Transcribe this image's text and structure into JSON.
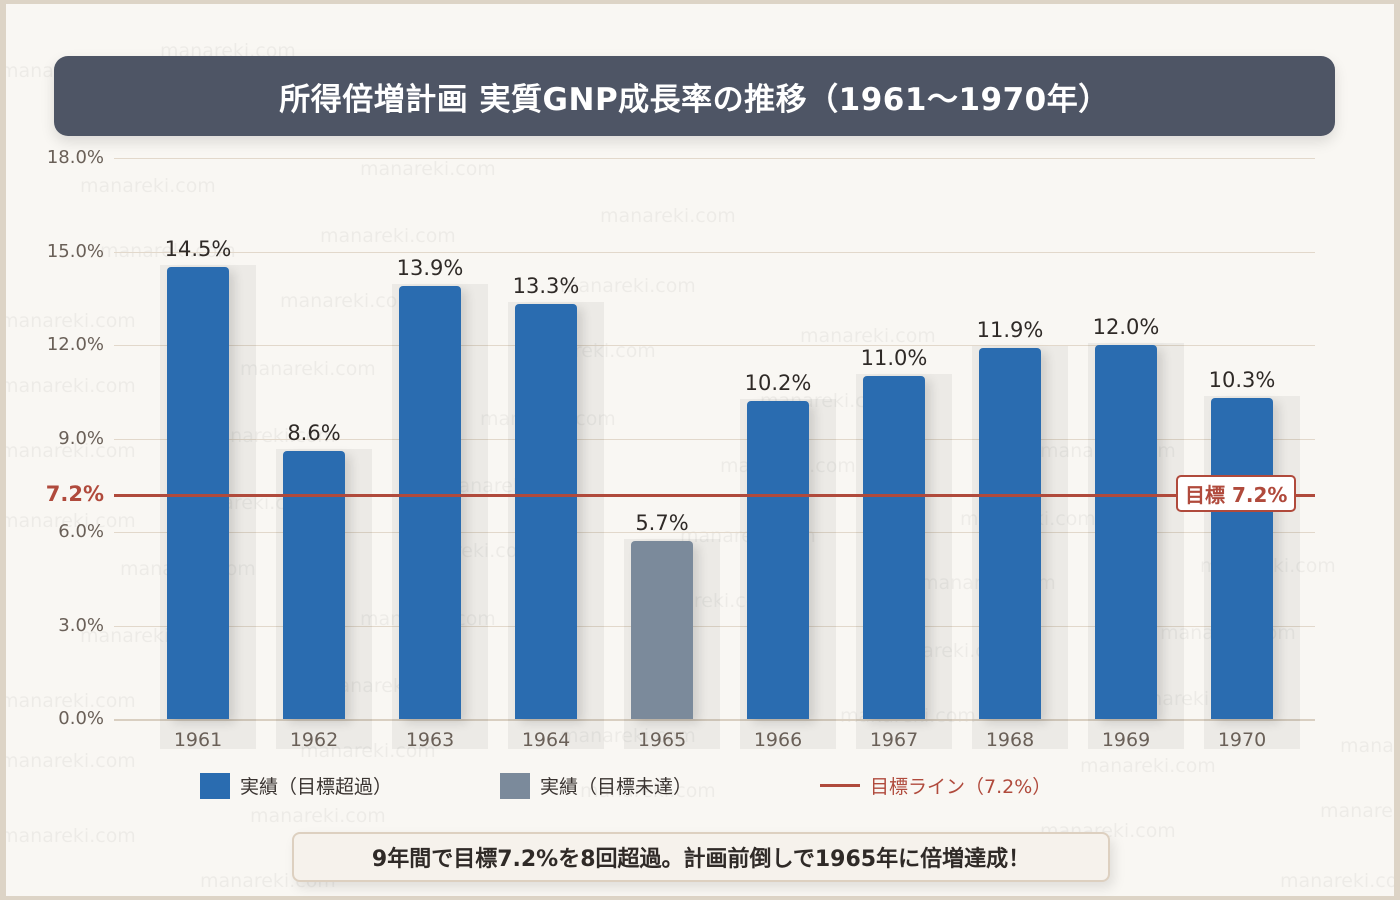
{
  "title": "所得倍増計画 実質GNP成長率の推移（1961〜1970年）",
  "watermark": "manareki.com",
  "colors": {
    "exceeded": "#2a6cb0",
    "not_reached": "#7b8a9b",
    "target": "#b04a3c",
    "title_bg": "#4e5565",
    "background": "#f9f7f3"
  },
  "y_axis": {
    "ticks": [
      "18.0%",
      "15.0%",
      "12.0%",
      "9.0%",
      "6.0%",
      "3.0%",
      "0.0%"
    ],
    "target_tick": "7.2%"
  },
  "target_badge": "目標 7.2%",
  "legend": {
    "exceeded": "実績（目標超過）",
    "not_reached": "実績（目標未達）",
    "target": "目標ライン（7.2%）"
  },
  "note": "9年間で目標7.2%を8回超過。計画前倒しで1965年に倍増達成！",
  "bars": [
    {
      "year": "1961",
      "label": "14.5%"
    },
    {
      "year": "1962",
      "label": "8.6%"
    },
    {
      "year": "1963",
      "label": "13.9%"
    },
    {
      "year": "1964",
      "label": "13.3%"
    },
    {
      "year": "1965",
      "label": "5.7%"
    },
    {
      "year": "1966",
      "label": "10.2%"
    },
    {
      "year": "1967",
      "label": "11.0%"
    },
    {
      "year": "1968",
      "label": "11.9%"
    },
    {
      "year": "1969",
      "label": "12.0%"
    },
    {
      "year": "1970",
      "label": "10.3%"
    }
  ],
  "chart_data": {
    "type": "bar",
    "title": "所得倍増計画 実質GNP成長率の推移（1961〜1970年）",
    "categories": [
      "1961",
      "1962",
      "1963",
      "1964",
      "1965",
      "1966",
      "1967",
      "1968",
      "1969",
      "1970"
    ],
    "values": [
      14.5,
      8.6,
      13.9,
      13.3,
      5.7,
      10.2,
      11.0,
      11.9,
      12.0,
      10.3
    ],
    "series": [
      {
        "name": "実績（目標超過）",
        "color": "#2a6cb0",
        "values": [
          14.5,
          8.6,
          13.9,
          13.3,
          null,
          10.2,
          11.0,
          11.9,
          12.0,
          10.3
        ]
      },
      {
        "name": "実績（目標未達）",
        "color": "#7b8a9b",
        "values": [
          null,
          null,
          null,
          null,
          5.7,
          null,
          null,
          null,
          null,
          null
        ]
      }
    ],
    "reference_lines": [
      {
        "name": "目標ライン（7.2%）",
        "value": 7.2,
        "color": "#b04a3c",
        "annotation": "目標 7.2%"
      }
    ],
    "xlabel": "",
    "ylabel": "",
    "ylim": [
      0,
      18
    ],
    "yticks": [
      0,
      3,
      6,
      9,
      12,
      15,
      18
    ],
    "ytick_format": "0.0%",
    "grid": true,
    "legend_position": "bottom",
    "annotation": "9年間で目標7.2%を8回超過。計画前倒しで1965年に倍増達成！"
  }
}
